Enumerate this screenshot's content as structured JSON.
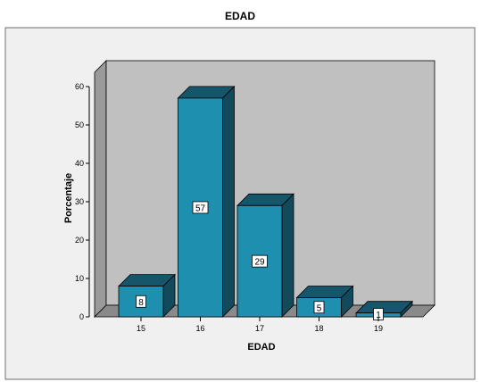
{
  "chart_data": {
    "type": "bar",
    "title": "EDAD",
    "xlabel": "EDAD",
    "ylabel": "Porcentaje",
    "categories": [
      "15",
      "16",
      "17",
      "18",
      "19"
    ],
    "values": [
      8,
      57,
      29,
      5,
      1
    ],
    "data_labels": [
      "8",
      "57",
      "29",
      "5",
      "1"
    ],
    "ylim": [
      0,
      60
    ],
    "yticks": [
      0,
      10,
      20,
      30,
      40,
      50,
      60
    ],
    "grid": false,
    "legend": "none",
    "style": "3d"
  },
  "colors": {
    "bar_front": "#1f8fb0",
    "bar_top": "#16566a",
    "bar_side": "#124a5c",
    "back_wall": "#c0c0c0",
    "side_wall": "#9a9a9a",
    "floor": "#8a8a8a",
    "frame_background": "#f0f0f0"
  }
}
